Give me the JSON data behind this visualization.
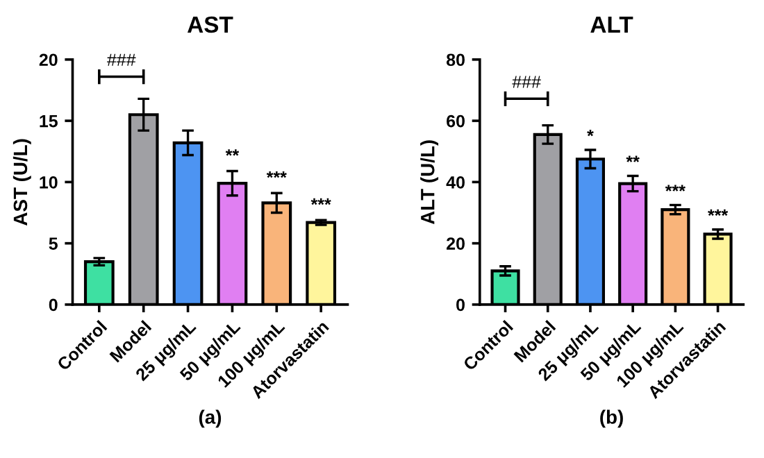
{
  "chart_data": [
    {
      "type": "bar",
      "title": "AST",
      "ylabel": "AST (U/L)",
      "xlabel": "(a)",
      "categories": [
        "Control",
        "Model",
        "25 μg/mL",
        "50 μg/mL",
        "100 μg/mL",
        "Atorvastatin"
      ],
      "values": [
        3.5,
        15.5,
        13.2,
        9.9,
        8.3,
        6.7
      ],
      "errors": [
        0.3,
        1.3,
        1.0,
        1.0,
        0.8,
        0.2
      ],
      "colors": [
        "#3ee0a2",
        "#a0a0a4",
        "#4d94f2",
        "#e07ff2",
        "#f9b47a",
        "#fff59c"
      ],
      "ylim": [
        0,
        20
      ],
      "yticks": [
        0,
        5,
        10,
        15,
        20
      ],
      "grid": false,
      "annotations": [
        "###",
        {
          "text": "**",
          "x": "50 μg/mL",
          "y": 11.4
        },
        {
          "text": "***",
          "x": "100 μg/mL",
          "y": 9.6
        },
        {
          "text": "***",
          "x": "Atorvastatin",
          "y": 7.4
        }
      ]
    },
    {
      "type": "bar",
      "title": "ALT",
      "ylabel": "ALT (U/L)",
      "xlabel": "(b)",
      "categories": [
        "Control",
        "Model",
        "25 μg/mL",
        "50 μg/mL",
        "100 μg/mL",
        "Atorvastatin"
      ],
      "values": [
        11,
        55.5,
        47.5,
        39.5,
        31,
        23
      ],
      "errors": [
        1.5,
        3,
        3,
        2.5,
        1.5,
        1.5
      ],
      "colors": [
        "#3ee0a2",
        "#a0a0a4",
        "#4d94f2",
        "#e07ff2",
        "#f9b47a",
        "#fff59c"
      ],
      "ylim": [
        0,
        80
      ],
      "yticks": [
        0,
        20,
        40,
        60,
        80
      ],
      "grid": false,
      "annotations": [
        "###",
        {
          "text": "*",
          "x": "25 μg/mL",
          "y": 52
        },
        {
          "text": "**",
          "x": "50 μg/mL",
          "y": 43.5
        },
        {
          "text": "***",
          "x": "100 μg/mL",
          "y": 34
        },
        {
          "text": "***",
          "x": "Atorvastatin",
          "y": 26
        }
      ]
    }
  ]
}
